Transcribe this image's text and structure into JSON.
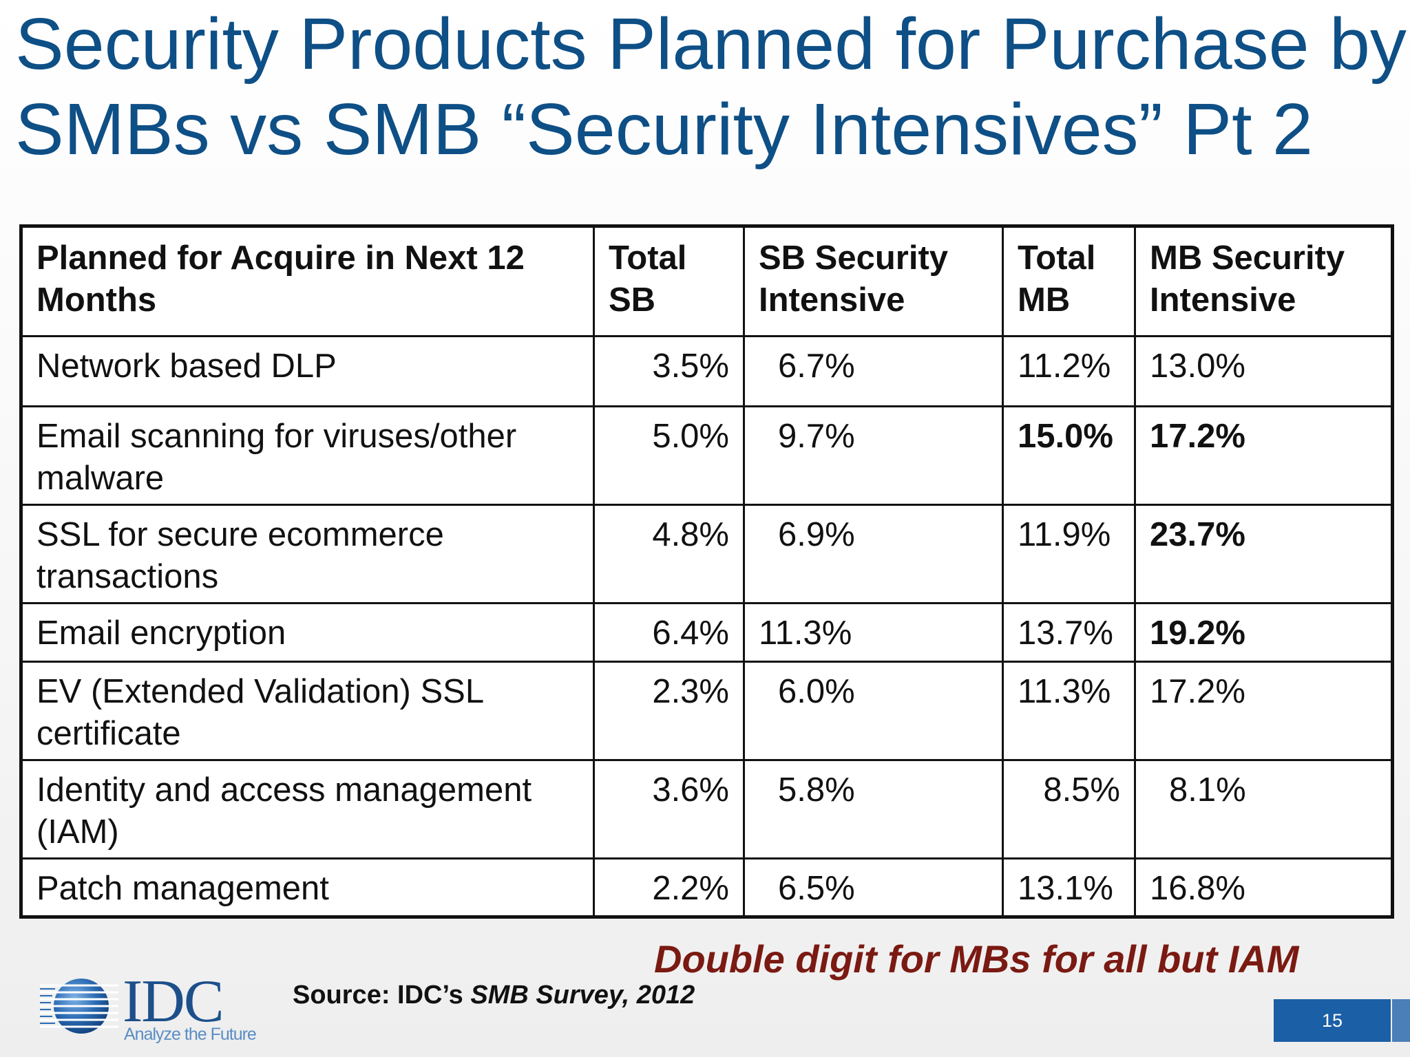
{
  "title": {
    "line1": "Security Products Planned for Purchase by",
    "line2": "SMBs vs SMB “Security Intensives” Pt 2"
  },
  "table": {
    "headers": {
      "col1": "Planned for Acquire in Next 12 Months",
      "col2": "Total SB",
      "col3": "SB Security Intensive",
      "col4": "Total MB",
      "col5": "MB Security Intensive"
    },
    "rows": [
      {
        "product": "Network based DLP",
        "total_sb": "3.5%",
        "sb_intensive": "6.7%",
        "total_mb": "11.2%",
        "mb_intensive": "13.0%"
      },
      {
        "product": "Email scanning for viruses/other malware",
        "total_sb": "5.0%",
        "sb_intensive": "9.7%",
        "total_mb": "15.0%",
        "mb_intensive": "17.2%"
      },
      {
        "product": "SSL for secure ecommerce transactions",
        "total_sb": "4.8%",
        "sb_intensive": "6.9%",
        "total_mb": "11.9%",
        "mb_intensive": "23.7%"
      },
      {
        "product": "Email encryption",
        "total_sb": "6.4%",
        "sb_intensive": "11.3%",
        "total_mb": "13.7%",
        "mb_intensive": "19.2%"
      },
      {
        "product": "EV (Extended Validation) SSL certificate",
        "total_sb": "2.3%",
        "sb_intensive": "6.0%",
        "total_mb": "11.3%",
        "mb_intensive": "17.2%"
      },
      {
        "product": "Identity and access management (IAM)",
        "total_sb": "3.6%",
        "sb_intensive": "5.8%",
        "total_mb": "8.5%",
        "mb_intensive": "8.1%"
      },
      {
        "product": "Patch management",
        "total_sb": "2.2%",
        "sb_intensive": "6.5%",
        "total_mb": "13.1%",
        "mb_intensive": "16.8%"
      }
    ]
  },
  "callout": "Double digit for MBs for all but IAM",
  "source": {
    "prefix": "Source: IDC’s ",
    "survey": "SMB Survey, 2012"
  },
  "logo": {
    "wordmark": "IDC",
    "tagline": "Analyze the Future",
    "icon": "idc-globe-icon"
  },
  "page_number": "15",
  "colors": {
    "title": "#0e4f86",
    "callout": "#7a1a12",
    "page_number_bg": "#1b5fa6",
    "logo": "#1d4f8b"
  }
}
